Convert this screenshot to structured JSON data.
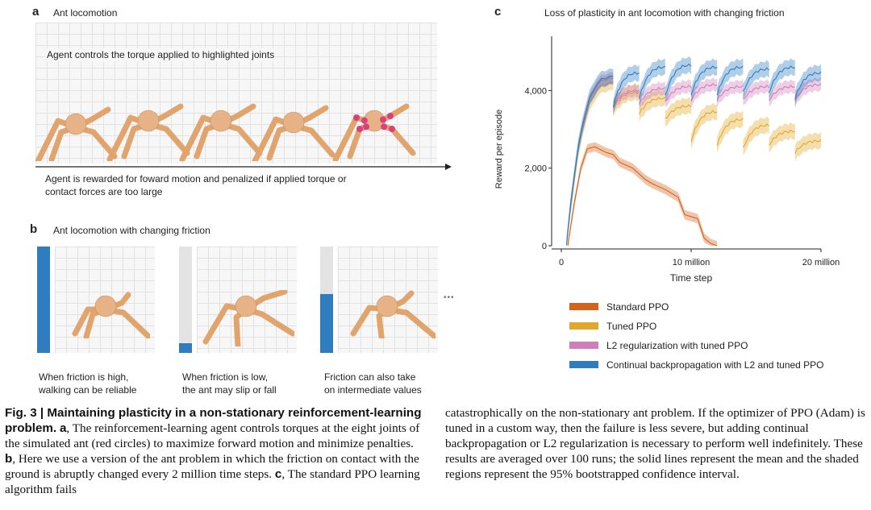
{
  "panel_a": {
    "letter": "a",
    "title": "Ant locomotion",
    "top_text": "Agent controls the torque applied to highlighted joints",
    "bottom_text_line1": "Agent is rewarded for foward motion and penalized if applied torque or",
    "bottom_text_line2": "contact forces are too large"
  },
  "panel_b": {
    "letter": "b",
    "title": "Ant locomotion with changing friction",
    "items": [
      {
        "line1": "When friction is high,",
        "line2": "walking can be reliable",
        "level": 1.0
      },
      {
        "line1": "When friction is low,",
        "line2": "the ant may slip or fall",
        "level": 0.09
      },
      {
        "line1": "Friction can also take",
        "line2": "on intermediate values",
        "level": 0.55
      }
    ],
    "ellipsis": "•••"
  },
  "panel_c": {
    "letter": "c",
    "title": "Loss of plasticity in ant locomotion with changing friction"
  },
  "colors": {
    "standard": "#d4641c",
    "tuned": "#e3a82b",
    "l2": "#cf7fb9",
    "cbp": "#2f7dbf",
    "joint": "#d9417a",
    "ant": "#e0a46c"
  },
  "chart_data": {
    "type": "line",
    "title": "Loss of plasticity in ant locomotion with changing friction",
    "xlabel": "Time step",
    "ylabel": "Reward per episode",
    "xlim": [
      0,
      20000000
    ],
    "ylim": [
      0,
      5400
    ],
    "xticks": [
      0,
      10000000,
      20000000
    ],
    "xtick_labels": [
      "0",
      "10  million",
      "20 million"
    ],
    "yticks": [
      0,
      2000,
      4000
    ],
    "ytick_labels": [
      "0",
      "2,000",
      "4,000"
    ],
    "grid": false,
    "legend_position": "bottom",
    "series": [
      {
        "name": "Standard PPO",
        "color_key": "standard",
        "x": [
          500000.0,
          1000000.0,
          1500000.0,
          2000000.0,
          2600000.0,
          3000000.0,
          3500000.0,
          4000000.0,
          4500000.0,
          5500000.0,
          6500000.0,
          7000000.0,
          8000000.0,
          9000000.0,
          9500000.0,
          10500000.0,
          11000000.0,
          11500000.0,
          12000000.0
        ],
        "y": [
          0,
          1100,
          2000,
          2500,
          2550,
          2480,
          2400,
          2350,
          2150,
          2000,
          1700,
          1600,
          1450,
          1250,
          800,
          700,
          200,
          60,
          0
        ],
        "band": 120
      },
      {
        "name": "Tuned PPO",
        "color_key": "tuned",
        "segments": [
          [
            400000.0,
            4000000.0,
            0,
            4200
          ],
          [
            4000000.0,
            6000000.0,
            3550,
            3950
          ],
          [
            6000000.0,
            8000000.0,
            3400,
            3800
          ],
          [
            8000000.0,
            10000000.0,
            3250,
            3600
          ],
          [
            10000000.0,
            12000000.0,
            2700,
            3450
          ],
          [
            12000000.0,
            14000000.0,
            2600,
            3250
          ],
          [
            14000000.0,
            16000000.0,
            2500,
            3100
          ],
          [
            16000000.0,
            18000000.0,
            2600,
            2950
          ],
          [
            18000000.0,
            20000000.0,
            2400,
            2700
          ]
        ],
        "band": 200
      },
      {
        "name": "L2 regularization with tuned PPO",
        "color_key": "l2",
        "segments": [
          [
            400000.0,
            4000000.0,
            0,
            4300
          ],
          [
            4000000.0,
            6000000.0,
            3600,
            4000
          ],
          [
            6000000.0,
            8000000.0,
            3650,
            4050
          ],
          [
            8000000.0,
            10000000.0,
            3700,
            4100
          ],
          [
            10000000.0,
            12000000.0,
            3750,
            4150
          ],
          [
            12000000.0,
            14000000.0,
            3750,
            4100
          ],
          [
            14000000.0,
            16000000.0,
            3750,
            4100
          ],
          [
            16000000.0,
            18000000.0,
            3750,
            4100
          ],
          [
            18000000.0,
            20000000.0,
            3750,
            4150
          ]
        ],
        "band": 160
      },
      {
        "name": "Continual backpropagation with L2 and tuned PPO",
        "color_key": "cbp",
        "segments": [
          [
            400000.0,
            4000000.0,
            0,
            4350
          ],
          [
            4000000.0,
            6000000.0,
            3600,
            4450
          ],
          [
            6000000.0,
            8000000.0,
            3800,
            4600
          ],
          [
            8000000.0,
            10000000.0,
            3850,
            4650
          ],
          [
            10000000.0,
            12000000.0,
            3900,
            4600
          ],
          [
            12000000.0,
            14000000.0,
            3900,
            4600
          ],
          [
            14000000.0,
            16000000.0,
            3950,
            4550
          ],
          [
            16000000.0,
            18000000.0,
            3950,
            4600
          ],
          [
            18000000.0,
            20000000.0,
            3800,
            4450
          ]
        ],
        "band": 200
      }
    ]
  },
  "legend": [
    {
      "label": "Standard PPO",
      "color_key": "standard"
    },
    {
      "label": "Tuned PPO",
      "color_key": "tuned"
    },
    {
      "label": "L2 regularization with tuned PPO",
      "color_key": "l2"
    },
    {
      "label": "Continual backpropagation with L2 and tuned PPO",
      "color_key": "cbp"
    }
  ],
  "caption": {
    "fig_label": "Fig. 3 | Maintaining plasticity in a non-stationary reinforcement-learning problem.",
    "left_l1_rest": "",
    "a_letter": "a",
    "a_text": ", The reinforcement-learning agent controls torques at the eight joints of the simulated ant (red circles) to maximize forward motion and minimize penalties.",
    "b_letter": "b",
    "b_text": ", Here we use a version of the ant problem in which the friction on contact with the ground is abruptly changed every 2 million time steps.",
    "c_letter": "c",
    "c_text": ", The standard PPO learning algorithm fails",
    "right_text": "catastrophically on the non-stationary ant problem. If the optimizer of PPO (Adam) is tuned in a custom way, then the failure is less severe, but adding continual backpropagation or L2 regularization is necessary to perform well indefinitely. These results are averaged over 100 runs; the solid lines represent the mean and the shaded regions represent the 95% bootstrapped confidence interval."
  }
}
